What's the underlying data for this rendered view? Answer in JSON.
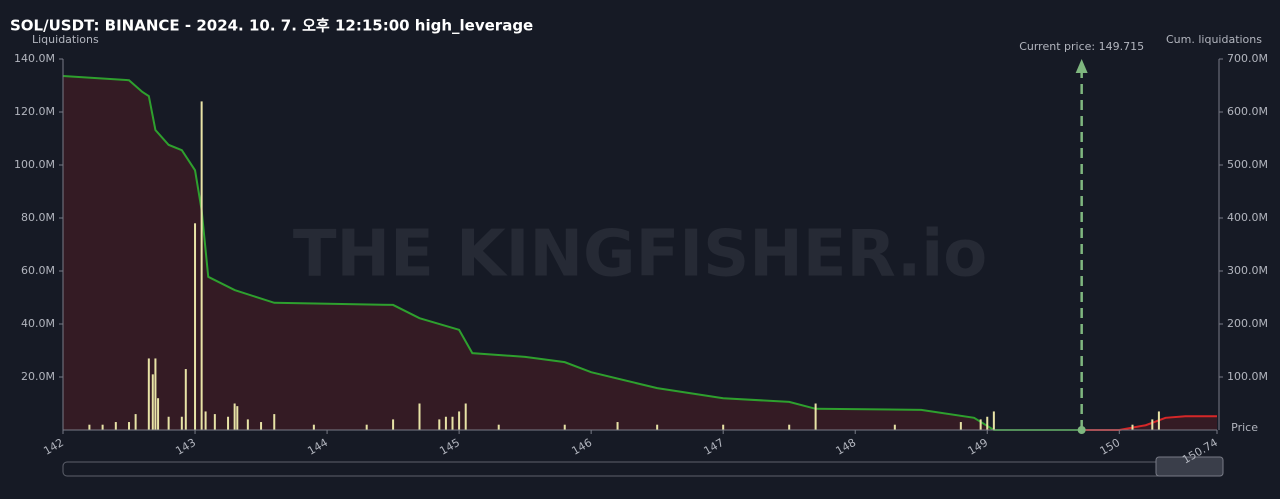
{
  "chart_data": {
    "type": "liquidation",
    "title": "SOL/USDT: BINANCE - 2024. 10. 7. 오후 12:15:00 high_leverage",
    "ylabel": "Liquidations",
    "y2label": "Cum. liquidations",
    "xlabel": "Price",
    "watermark": "THE KINGFISHER.io",
    "annotation": "Current price:",
    "current_price": 149.715,
    "xlim": [
      142,
      150.74
    ],
    "xticks": [
      142,
      143,
      144,
      145,
      146,
      147,
      148,
      149,
      150,
      150.74
    ],
    "ylim": [
      0,
      140
    ],
    "yticks": [
      {
        "value": 20,
        "label": "20.0M"
      },
      {
        "value": 40,
        "label": "40.0M"
      },
      {
        "value": 60,
        "label": "60.0M"
      },
      {
        "value": 80,
        "label": "80.0M"
      },
      {
        "value": 100,
        "label": "100.0M"
      },
      {
        "value": 120,
        "label": "120.0M"
      },
      {
        "value": 140,
        "label": "140.0M"
      }
    ],
    "y2lim": [
      0,
      700
    ],
    "y2ticks": [
      {
        "value": 100,
        "label": "100.0M"
      },
      {
        "value": 200,
        "label": "200.0M"
      },
      {
        "value": 300,
        "label": "300.0M"
      },
      {
        "value": 400,
        "label": "400.0M"
      },
      {
        "value": 500,
        "label": "500.0M"
      },
      {
        "value": 600,
        "label": "600.0M"
      },
      {
        "value": 700,
        "label": "700.0M"
      }
    ],
    "series": [
      {
        "kind": "bars",
        "color": "#e8e3a6",
        "x": [
          142.2,
          142.3,
          142.4,
          142.5,
          142.55,
          142.65,
          142.68,
          142.7,
          142.72,
          142.8,
          142.9,
          142.93,
          143.0,
          143.05,
          143.08,
          143.15,
          143.25,
          143.3,
          143.32,
          143.4,
          143.5,
          143.6,
          143.9,
          144.3,
          144.5,
          144.7,
          144.85,
          144.9,
          144.95,
          145.0,
          145.05,
          145.3,
          145.8,
          146.2,
          146.5,
          147.0,
          147.5,
          147.7,
          148.3,
          148.8,
          148.95,
          149.0,
          149.05,
          150.1,
          150.25,
          150.3
        ],
        "values": [
          2,
          2,
          3,
          3,
          6,
          27,
          21,
          27,
          12,
          5,
          5,
          23,
          78,
          124,
          7,
          6,
          5,
          10,
          9,
          4,
          3,
          6,
          2,
          2,
          4,
          10,
          4,
          5,
          5,
          7,
          10,
          2,
          2,
          3,
          2,
          2,
          2,
          10,
          2,
          3,
          4,
          5,
          7,
          2,
          4,
          7
        ]
      },
      {
        "kind": "cum",
        "axis": "y2",
        "color": "#2ea02e",
        "x": [
          142,
          142.5,
          142.6,
          142.65,
          142.7,
          142.8,
          142.9,
          143.0,
          143.05,
          143.1,
          143.3,
          143.6,
          144.5,
          144.7,
          145.0,
          145.1,
          145.5,
          145.8,
          146.0,
          146.5,
          147.0,
          147.5,
          147.7,
          148.5,
          148.9,
          149.05,
          149.715
        ],
        "values": [
          668,
          660,
          638,
          630,
          566,
          538,
          528,
          490,
          415,
          289,
          264,
          240,
          236,
          211,
          189,
          145,
          138,
          128,
          109,
          79,
          60,
          53,
          40,
          38,
          23,
          0,
          0
        ]
      },
      {
        "kind": "cum",
        "axis": "y2",
        "color": "#d62728",
        "x": [
          149.715,
          150.0,
          150.2,
          150.35,
          150.5,
          150.74
        ],
        "values": [
          0,
          0,
          9,
          23,
          26,
          26
        ]
      }
    ]
  }
}
